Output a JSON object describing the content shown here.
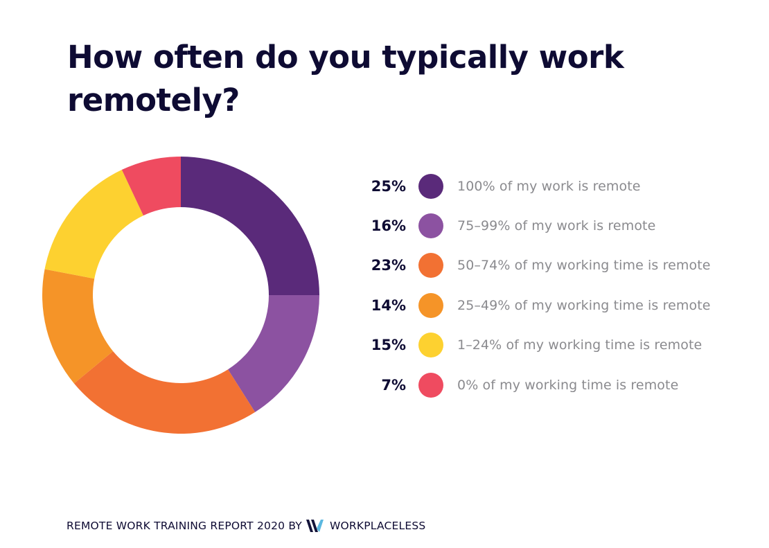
{
  "title": "How often do you typically work remotely?",
  "footer": {
    "report": "REMOTE WORK TRAINING REPORT 2020 BY",
    "brand": "WORKPLACELESS",
    "logo_icon": "workplaceless-w-logo"
  },
  "legend": [
    {
      "pct": "25%",
      "label": "100% of my work is remote",
      "color": "#5a2a7a"
    },
    {
      "pct": "16%",
      "label": "75–99% of my work is remote",
      "color": "#8c52a1"
    },
    {
      "pct": "23%",
      "label": "50–74% of my working time is remote",
      "color": "#f27133"
    },
    {
      "pct": "14%",
      "label": "25–49% of my working time is remote",
      "color": "#f59428"
    },
    {
      "pct": "15%",
      "label": "1–24% of my working time is remote",
      "color": "#fdd130"
    },
    {
      "pct": "7%",
      "label": "0% of my working time is remote",
      "color": "#ef4b60"
    }
  ],
  "chart_data": {
    "type": "pie",
    "subtype": "donut",
    "title": "How often do you typically work remotely?",
    "categories": [
      "100% of my work is remote",
      "75–99% of my work is remote",
      "50–74% of my working time is remote",
      "25–49% of my working time is remote",
      "1–24% of my working time is remote",
      "0% of my working time is remote"
    ],
    "values": [
      25,
      16,
      23,
      14,
      15,
      7
    ],
    "unit": "%",
    "colors": [
      "#5a2a7a",
      "#8c52a1",
      "#f27133",
      "#f59428",
      "#fdd130",
      "#ef4b60"
    ],
    "start_angle": "12 o'clock, clockwise",
    "legend_position": "right"
  }
}
